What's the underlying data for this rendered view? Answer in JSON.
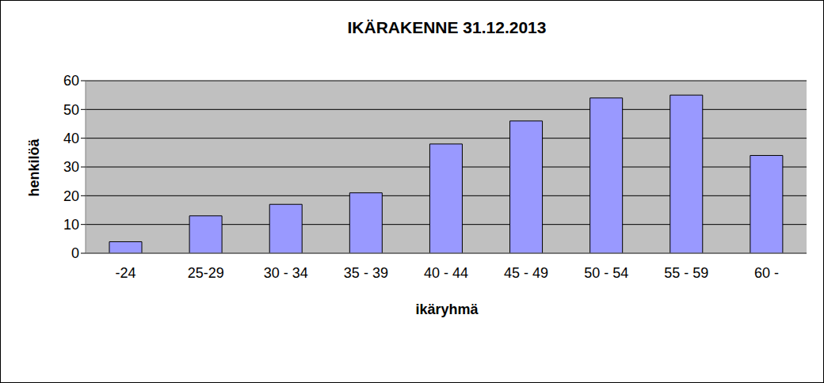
{
  "chart_data": {
    "type": "bar",
    "title": "IKÄRAKENNE 31.12.2013",
    "x_label": "ikäryhmä",
    "y_label": "henkilöä",
    "categories": [
      "-24",
      "25-29",
      "30 - 34",
      "35 - 39",
      "40 - 44",
      "45 - 49",
      "50 - 54",
      "55 - 59",
      "60 -"
    ],
    "values": [
      4,
      13,
      17,
      21,
      38,
      46,
      54,
      55,
      34
    ],
    "color": "#9999ff",
    "ylim": [
      0,
      60
    ],
    "yticks": [
      0,
      10,
      20,
      30,
      40,
      50,
      60
    ],
    "grid": true
  }
}
